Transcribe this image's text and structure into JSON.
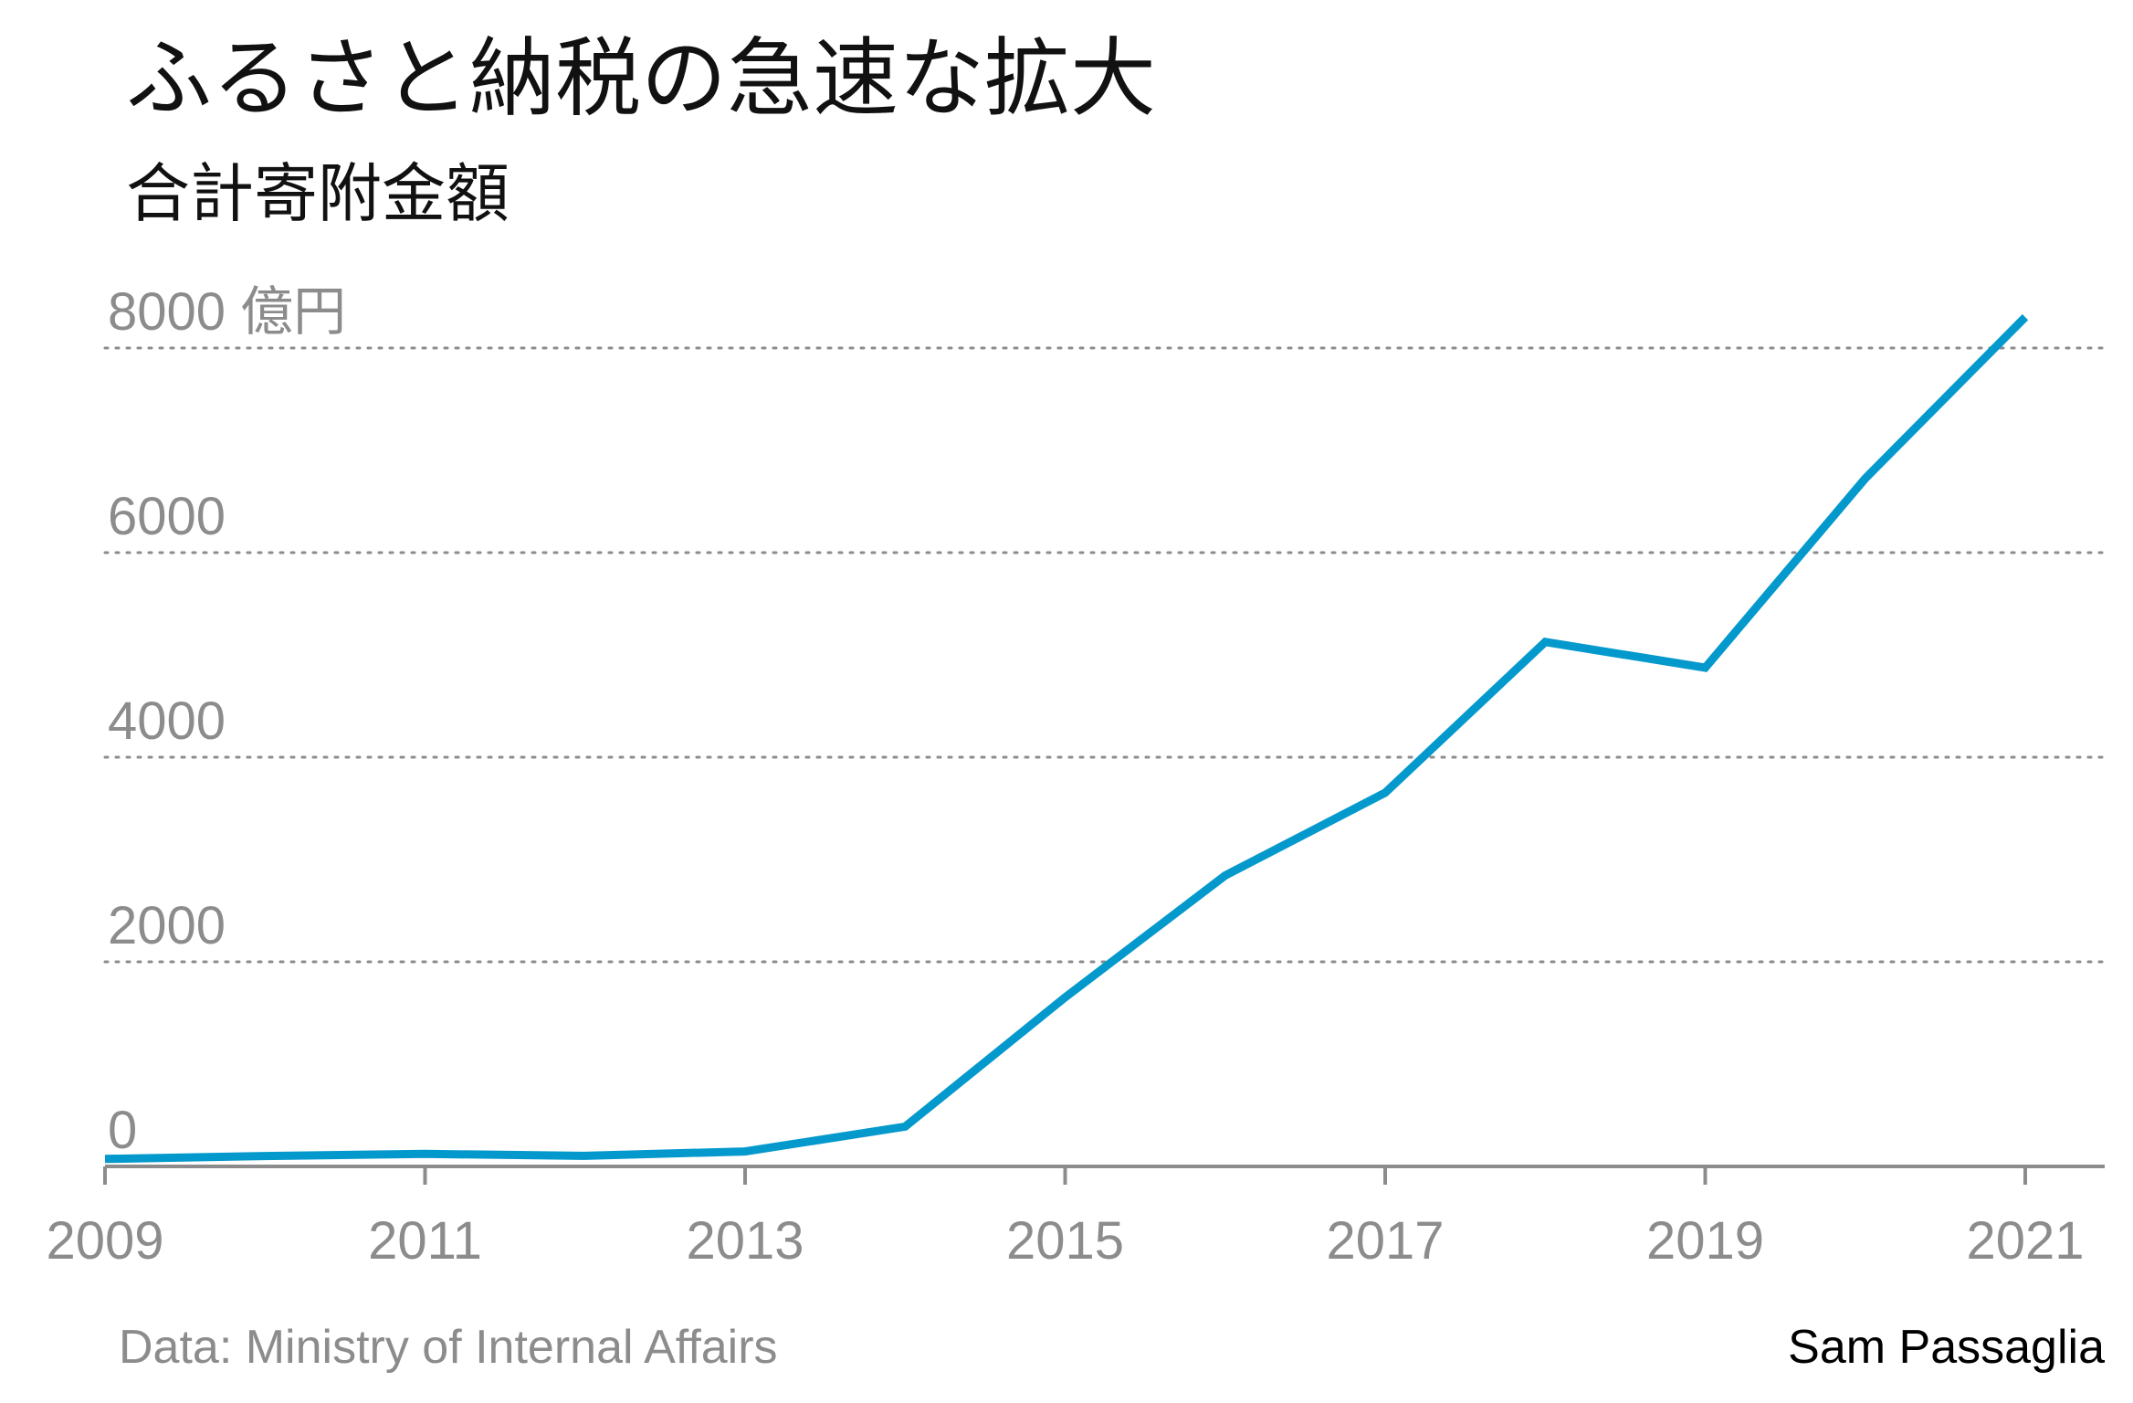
{
  "header": {
    "title": "ふるさと納税の急速な拡大",
    "subtitle": "合計寄附金額"
  },
  "footer": {
    "source": "Data: Ministry of Internal Affairs",
    "credit": "Sam Passaglia"
  },
  "colors": {
    "line": "#0499cc",
    "grid": "#8c8c8c",
    "axis": "#8c8c8c",
    "tick_text": "#8c8c8c",
    "title_text": "#111111",
    "source_text": "#8c8c8c",
    "credit_text": "#000000"
  },
  "chart_data": {
    "type": "line",
    "title": "ふるさと納税の急速な拡大",
    "subtitle": "合計寄附金額",
    "unit": "億円",
    "y_top_label": "8000 億円",
    "xlabel": "",
    "ylabel": "",
    "xlim": [
      2009,
      2021.5
    ],
    "ylim": [
      0,
      8000
    ],
    "xticks": [
      2009,
      2011,
      2013,
      2015,
      2017,
      2019,
      2021
    ],
    "yticks": [
      0,
      2000,
      4000,
      6000,
      8000
    ],
    "grid": true,
    "legend": "none",
    "series": [
      {
        "x": [
          2009,
          2010,
          2011,
          2012,
          2013,
          2014,
          2015,
          2016,
          2017,
          2018,
          2019,
          2020,
          2021
        ],
        "values": [
          73,
          102,
          122,
          104,
          146,
          389,
          1653,
          2844,
          3653,
          5127,
          4875,
          6725,
          8302
        ]
      }
    ]
  }
}
